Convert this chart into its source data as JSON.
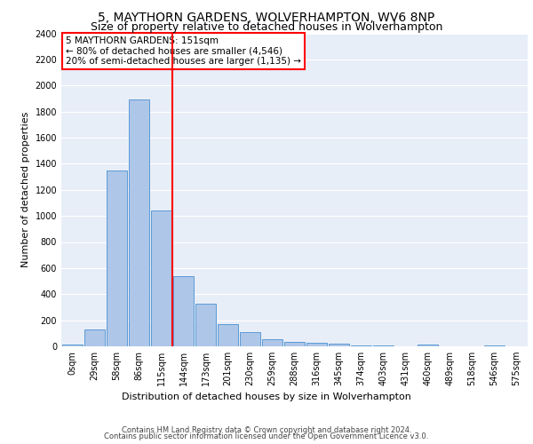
{
  "title1": "5, MAYTHORN GARDENS, WOLVERHAMPTON, WV6 8NP",
  "title2": "Size of property relative to detached houses in Wolverhampton",
  "xlabel": "Distribution of detached houses by size in Wolverhampton",
  "ylabel": "Number of detached properties",
  "footnote1": "Contains HM Land Registry data © Crown copyright and database right 2024.",
  "footnote2": "Contains public sector information licensed under the Open Government Licence v3.0.",
  "annotation_line1": "5 MAYTHORN GARDENS: 151sqm",
  "annotation_line2": "← 80% of detached houses are smaller (4,546)",
  "annotation_line3": "20% of semi-detached houses are larger (1,135) →",
  "property_size_bin": 5,
  "bar_labels": [
    "0sqm",
    "29sqm",
    "58sqm",
    "86sqm",
    "115sqm",
    "144sqm",
    "173sqm",
    "201sqm",
    "230sqm",
    "259sqm",
    "288sqm",
    "316sqm",
    "345sqm",
    "374sqm",
    "403sqm",
    "431sqm",
    "460sqm",
    "489sqm",
    "518sqm",
    "546sqm",
    "575sqm"
  ],
  "bar_values": [
    15,
    130,
    1350,
    1890,
    1040,
    540,
    330,
    170,
    110,
    55,
    35,
    25,
    20,
    5,
    5,
    0,
    15,
    0,
    0,
    5,
    0
  ],
  "bar_color": "#aec6e8",
  "bar_edge_color": "#5b9bd5",
  "vline_color": "red",
  "vline_bin": 5,
  "ylim": [
    0,
    2400
  ],
  "yticks": [
    0,
    200,
    400,
    600,
    800,
    1000,
    1200,
    1400,
    1600,
    1800,
    2000,
    2200,
    2400
  ],
  "bg_color": "#e8eef8",
  "grid_color": "#ffffff",
  "title_fontsize": 10,
  "subtitle_fontsize": 9,
  "ylabel_fontsize": 8,
  "xlabel_fontsize": 8,
  "tick_fontsize": 7,
  "annot_fontsize": 7.5,
  "footnote_fontsize": 6
}
